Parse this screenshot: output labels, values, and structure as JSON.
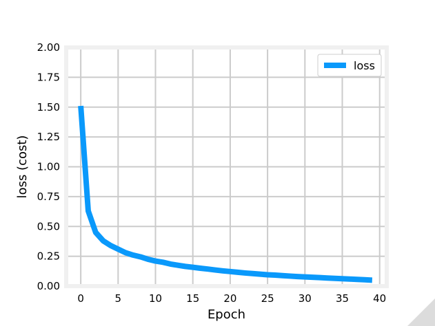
{
  "chart_data": {
    "type": "line",
    "title": "",
    "xlabel": "Epoch",
    "ylabel": "loss (cost)",
    "xlim": [
      -1.95,
      40.95
    ],
    "ylim": [
      0,
      2.0
    ],
    "xticks": [
      0,
      5,
      10,
      15,
      20,
      25,
      30,
      35,
      40
    ],
    "yticks": [
      0.0,
      0.25,
      0.5,
      0.75,
      1.0,
      1.25,
      1.5,
      1.75,
      2.0
    ],
    "xtick_labels": [
      "0",
      "5",
      "10",
      "15",
      "20",
      "25",
      "30",
      "35",
      "40"
    ],
    "ytick_labels": [
      "0.00",
      "0.25",
      "0.50",
      "0.75",
      "1.00",
      "1.25",
      "1.50",
      "1.75",
      "2.00"
    ],
    "grid": true,
    "legend": {
      "position": "top-right",
      "entries": [
        "loss"
      ]
    },
    "series": [
      {
        "name": "loss",
        "color": "#0a99fb",
        "x": [
          0,
          1,
          2,
          3,
          4,
          5,
          6,
          7,
          8,
          9,
          10,
          11,
          12,
          13,
          14,
          15,
          16,
          17,
          18,
          19,
          20,
          21,
          22,
          23,
          24,
          25,
          26,
          27,
          28,
          29,
          30,
          31,
          32,
          33,
          34,
          35,
          36,
          37,
          38,
          39
        ],
        "y": [
          1.51,
          0.63,
          0.45,
          0.38,
          0.34,
          0.31,
          0.28,
          0.26,
          0.245,
          0.225,
          0.21,
          0.2,
          0.185,
          0.175,
          0.165,
          0.158,
          0.15,
          0.143,
          0.135,
          0.128,
          0.122,
          0.116,
          0.11,
          0.105,
          0.1,
          0.095,
          0.092,
          0.088,
          0.084,
          0.08,
          0.077,
          0.074,
          0.071,
          0.068,
          0.065,
          0.062,
          0.059,
          0.056,
          0.053,
          0.05
        ]
      }
    ]
  }
}
